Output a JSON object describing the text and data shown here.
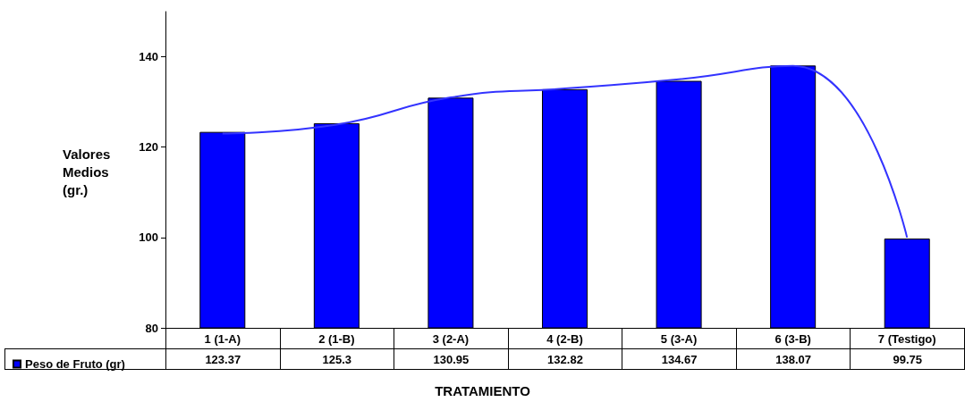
{
  "chart_data": {
    "type": "bar",
    "xlabel": "TRATAMIENTO",
    "ylabel": "Valores\nMedios\n(gr.)",
    "categories": [
      "1 (1-A)",
      "2 (1-B)",
      "3 (2-A)",
      "4 (2-B)",
      "5 (3-A)",
      "6 (3-B)",
      "7 (Testigo)"
    ],
    "series": [
      {
        "name": "Peso de Fruto (gr)",
        "color": "#0000ff",
        "values": [
          123.37,
          125.3,
          130.95,
          132.82,
          134.67,
          138.07,
          99.75
        ],
        "value_labels": [
          "123.37",
          "125.3",
          "130.95",
          "132.82",
          "134.67",
          "138.07",
          "99.75"
        ]
      },
      {
        "type": "line",
        "color": "#3333ff",
        "marker": "none",
        "values": [
          123,
          125,
          131,
          133,
          135,
          138,
          100
        ]
      }
    ],
    "ylim": [
      80,
      150
    ],
    "yticks": [
      80,
      100,
      120,
      140
    ],
    "grid": false,
    "legend": "bottom left"
  }
}
